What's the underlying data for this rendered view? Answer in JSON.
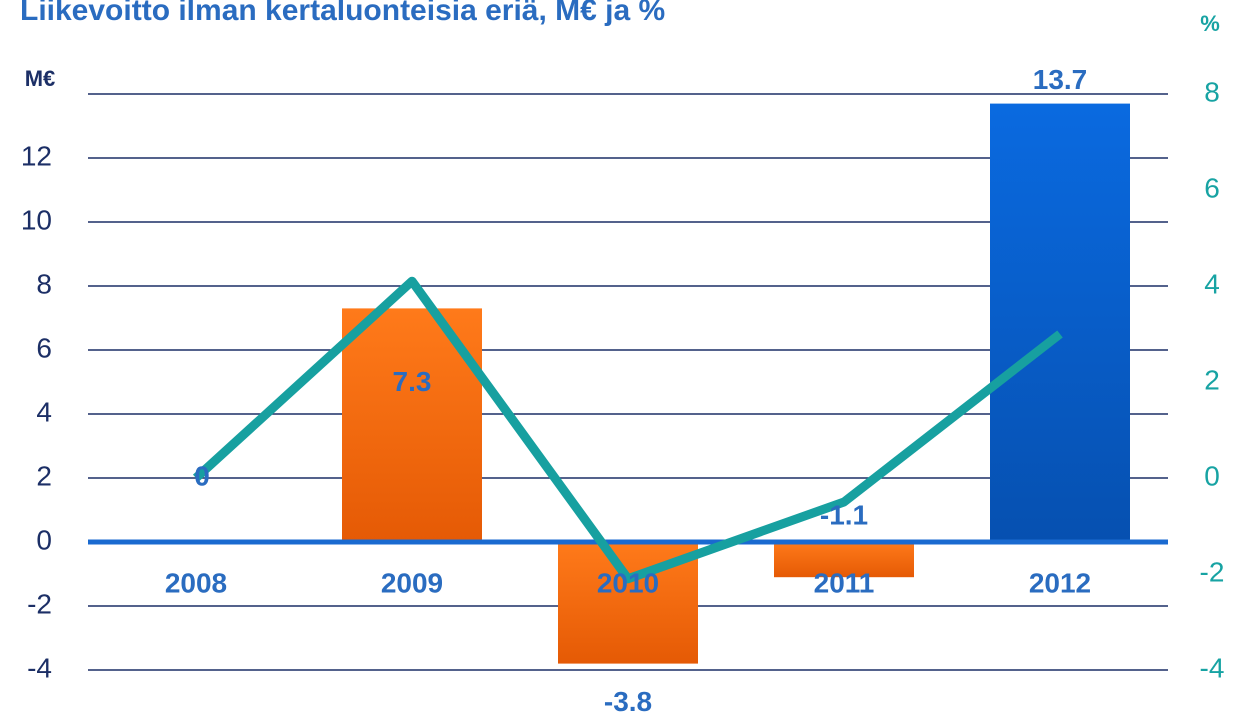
{
  "chart_data": {
    "type": "bar",
    "title": "Liikevoitto ilman kertaluonteisia eriä, M€ ja %",
    "y_label": "M€",
    "y2_label": "%",
    "categories": [
      "2008",
      "2009",
      "2010",
      "2011",
      "2012"
    ],
    "series": [
      {
        "name": "M€",
        "type": "bar",
        "colors": [
          "#f26a10",
          "#f26a10",
          "#f26a10",
          "#f26a10",
          "#0a5fd0"
        ],
        "values": [
          0,
          7.3,
          -3.8,
          -1.1,
          13.7
        ]
      },
      {
        "name": "%",
        "type": "line",
        "axis": "y2",
        "color": "#17a0a0",
        "values": [
          0,
          4.1,
          -2.1,
          -0.5,
          3.0
        ]
      }
    ],
    "ylim": [
      -4,
      14
    ],
    "yticks": [
      -4,
      -2,
      0,
      2,
      4,
      6,
      8,
      10,
      12
    ],
    "y2lim": [
      -4,
      8
    ],
    "y2ticks": [
      -4,
      -2,
      0,
      2,
      4,
      6,
      8
    ],
    "grid": true
  }
}
